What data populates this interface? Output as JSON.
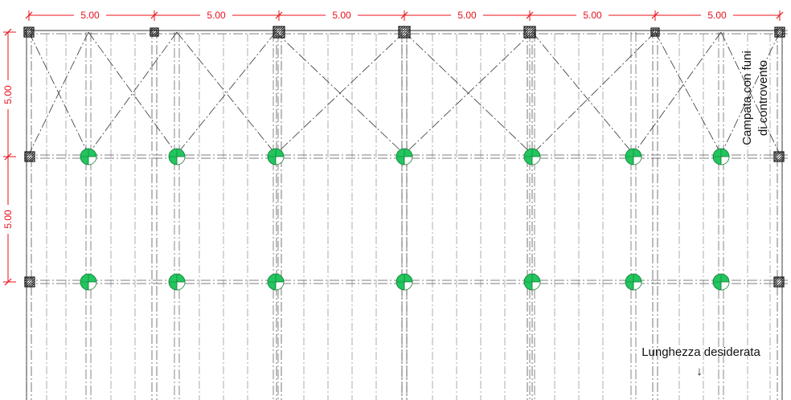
{
  "drawing": {
    "top_dimensions": [
      "5.00",
      "5.00",
      "5.00",
      "5.00",
      "5.00",
      "5.00"
    ],
    "left_dimensions": [
      "5.00",
      "5.00"
    ],
    "bracing_note_line1": "Campata con funi",
    "bracing_note_line2": "di controvento",
    "length_note": "Lunghezza desiderata",
    "length_arrow": "↓"
  },
  "colors": {
    "dimension": "#e8101a",
    "column_marker": "#22c55e",
    "grid_line": "#555555"
  }
}
